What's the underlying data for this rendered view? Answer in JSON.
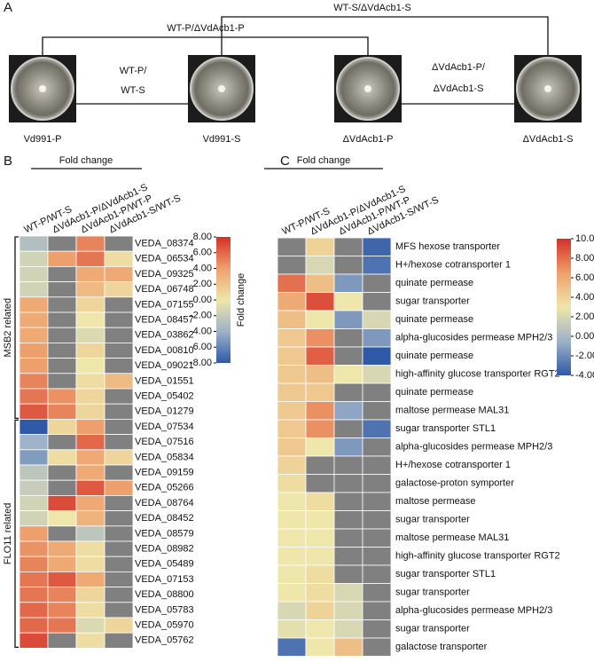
{
  "panel_a": {
    "label": "A",
    "comparisons": [
      "WT-P/ΔVdAcb1-P",
      "WT-S/ΔVdAcb1-S",
      "WT-P/",
      "WT-S",
      "ΔVdAcb1-P/",
      "ΔVdAcb1-S"
    ],
    "strains": [
      "Vd991-P",
      "Vd991-S",
      "ΔVdAcb1-P",
      "ΔVdAcb1-S"
    ]
  },
  "chart_data": [
    {
      "type": "heatmap",
      "panel_label": "B",
      "header": "Fold change",
      "colorbar_label": "Fold change",
      "columns": [
        "WT-P/WT-S",
        "ΔVdAcb1-P/ΔVdAcb1-S",
        "ΔVdAcb1-P/WT-P",
        "ΔVdAcb1-S/WT-S"
      ],
      "zlim": [
        -8,
        8
      ],
      "zticks": [
        {
          "value": 8,
          "label": "8.00"
        },
        {
          "value": 6,
          "label": "6.00"
        },
        {
          "value": 4,
          "label": "4.00"
        },
        {
          "value": 2,
          "label": "2.00"
        },
        {
          "value": 0,
          "label": "0.00"
        },
        {
          "value": -2,
          "label": "-2.00"
        },
        {
          "value": -4,
          "label": "-4.00"
        },
        {
          "value": -6,
          "label": "-6.00"
        },
        {
          "value": -8,
          "label": "-8.00"
        }
      ],
      "colormap": [
        "#2f58a6",
        "#9eb2c8",
        "#eee6aa",
        "#eea06c",
        "#d52f28"
      ],
      "missing_color": "#808080",
      "groups": [
        {
          "name": "MSB2 related",
          "rows": [
            "VEDA_08374",
            "VEDA_06534",
            "VEDA_09325",
            "VEDA_06748",
            "VEDA_07155",
            "VEDA_08457",
            "VEDA_03862",
            "VEDA_00810",
            "VEDA_09021",
            "VEDA_01551",
            "VEDA_05402",
            "VEDA_01279"
          ],
          "values": [
            [
              -3,
              null,
              5,
              null
            ],
            [
              -1.5,
              4,
              5.5,
              0.5
            ],
            [
              -1.5,
              null,
              3.5,
              3.5
            ],
            [
              -1.5,
              null,
              2.5,
              1
            ],
            [
              3.5,
              null,
              1,
              null
            ],
            [
              3.5,
              null,
              0,
              null
            ],
            [
              3.5,
              null,
              -1,
              null
            ],
            [
              4,
              null,
              1,
              null
            ],
            [
              4,
              null,
              0,
              null
            ],
            [
              5,
              null,
              0.5,
              2.5
            ],
            [
              5.5,
              4.5,
              1,
              null
            ],
            [
              6.5,
              5,
              1,
              null
            ]
          ]
        },
        {
          "name": "FLO11 related",
          "rows": [
            "VEDA_07534",
            "VEDA_07516",
            "VEDA_05834",
            "VEDA_09159",
            "VEDA_05266",
            "VEDA_08764",
            "VEDA_08452",
            "VEDA_08579",
            "VEDA_08982",
            "VEDA_05489",
            "VEDA_07153",
            "VEDA_08800",
            "VEDA_05783",
            "VEDA_05970",
            "VEDA_05762"
          ],
          "values": [
            [
              -8,
              1,
              4,
              null
            ],
            [
              -4,
              null,
              6,
              null
            ],
            [
              -5,
              0.5,
              3.5,
              1
            ],
            [
              -2.5,
              null,
              3.5,
              null
            ],
            [
              -2,
              null,
              6.5,
              4
            ],
            [
              -1.5,
              7,
              3.5,
              null
            ],
            [
              -1.5,
              0,
              3,
              null
            ],
            [
              4,
              null,
              -2.5,
              null
            ],
            [
              4.5,
              3.5,
              0.5,
              null
            ],
            [
              5,
              3.5,
              0.5,
              null
            ],
            [
              5.5,
              6.5,
              3.5,
              null
            ],
            [
              5.5,
              5,
              1,
              null
            ],
            [
              6,
              5,
              0.5,
              null
            ],
            [
              6,
              5.5,
              -1,
              1
            ],
            [
              7,
              null,
              0.5,
              null
            ]
          ]
        }
      ]
    },
    {
      "type": "heatmap",
      "panel_label": "C",
      "header": "Fold change",
      "columns": [
        "WT-P/WT-S",
        "ΔVdAcb1-P/ΔVdAcb1-S",
        "ΔVdAcb1-P/WT-P",
        "ΔVdAcb1-S/WT-S"
      ],
      "zlim": [
        -4,
        10
      ],
      "zticks": [
        {
          "value": 10,
          "label": "10.00"
        },
        {
          "value": 8,
          "label": "8.00"
        },
        {
          "value": 6,
          "label": "6.00"
        },
        {
          "value": 4,
          "label": "4.00"
        },
        {
          "value": 2,
          "label": "2.00"
        },
        {
          "value": 0,
          "label": "0.00"
        },
        {
          "value": -2,
          "label": "-2.00"
        },
        {
          "value": -4,
          "label": "-4.00"
        }
      ],
      "colormap": [
        "#2f58a6",
        "#9eb2c8",
        "#eee6aa",
        "#eea06c",
        "#d52f28"
      ],
      "missing_color": "#808080",
      "rows": [
        "MFS hexose transporter",
        "H+/hexose cotransporter 1",
        "quinate permease",
        "sugar transporter",
        "quinate permease",
        "alpha-glucosides permease MPH2/3",
        "quinate permease",
        "high-affinity glucose transporter RGT2",
        "quinate permease",
        "maltose permease MAL31",
        "sugar transporter STL1",
        "alpha-glucosides permease MPH2/3",
        "H+/hexose cotransporter 1",
        "galactose-proton symporter",
        "maltose permease",
        "sugar transporter",
        "maltose permease MAL31",
        "high-affinity glucose transporter RGT2",
        "sugar transporter STL1",
        "sugar transporter",
        "alpha-glucosides permease MPH2/3",
        "sugar transporter",
        "galactose transporter"
      ],
      "values": [
        [
          null,
          4,
          null,
          -3.5
        ],
        [
          null,
          2,
          null,
          -3
        ],
        [
          8,
          5,
          -1.5,
          null
        ],
        [
          6,
          9,
          3,
          null
        ],
        [
          5,
          3,
          -1.5,
          2
        ],
        [
          4.5,
          7,
          null,
          -1.5
        ],
        [
          4.5,
          8.5,
          null,
          -4
        ],
        [
          4.5,
          5,
          3,
          2
        ],
        [
          4.5,
          4.5,
          null,
          null
        ],
        [
          4.5,
          7,
          -1,
          null
        ],
        [
          4.5,
          7,
          null,
          -3
        ],
        [
          4.5,
          3,
          -1.5,
          null
        ],
        [
          4,
          null,
          null,
          null
        ],
        [
          3.5,
          null,
          null,
          null
        ],
        [
          3,
          3.5,
          null,
          null
        ],
        [
          3,
          3,
          null,
          null
        ],
        [
          3,
          3,
          null,
          null
        ],
        [
          3,
          3,
          null,
          null
        ],
        [
          3,
          3.5,
          null,
          null
        ],
        [
          3,
          3.5,
          2,
          null
        ],
        [
          2,
          4,
          2,
          null
        ],
        [
          2.5,
          3,
          2,
          null
        ],
        [
          -3,
          3,
          5,
          null
        ]
      ]
    }
  ]
}
